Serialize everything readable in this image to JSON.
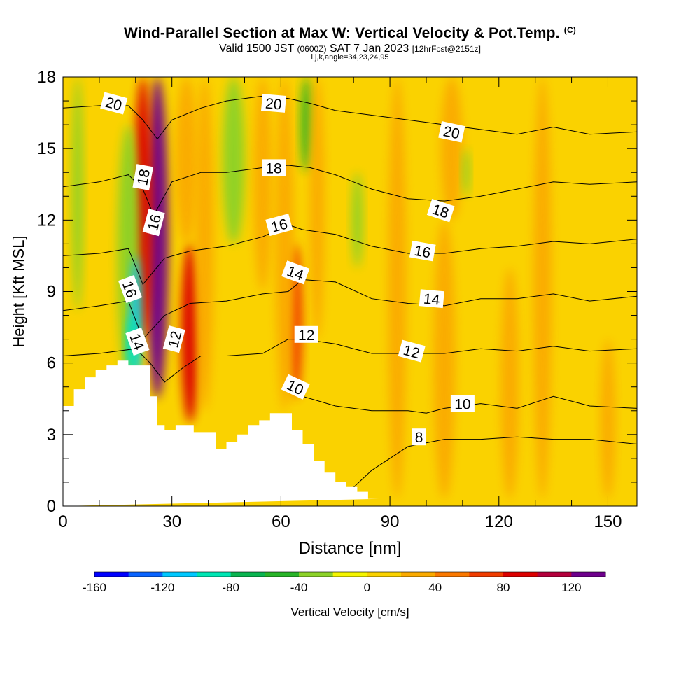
{
  "header": {
    "title": "Wind-Parallel Section at Max W: Vertical Velocity & Pot.Temp.",
    "copyright": "(C)",
    "valid_prefix": "Valid 1500 JST",
    "valid_utc": "(0600Z)",
    "valid_date": "SAT 7 Jan 2023",
    "forecast": "[12hrFcst@2151z]",
    "indices": "i,j,k,angle=34,23,24,95"
  },
  "chart_data": {
    "type": "contour",
    "xlabel": "Distance [nm]",
    "ylabel": "Height [Kft MSL]",
    "xlim": [
      0,
      158
    ],
    "ylim": [
      0,
      18
    ],
    "x_ticks": [
      0,
      30,
      60,
      90,
      120,
      150
    ],
    "y_ticks": [
      0,
      3,
      6,
      9,
      12,
      15,
      18
    ],
    "colorbar": {
      "label": "Vertical Velocity [cm/s]",
      "range": [
        -160,
        140
      ],
      "step": 20,
      "tick_labels": [
        -160,
        -120,
        -80,
        -40,
        0,
        40,
        80,
        120
      ],
      "colors": [
        "#0000ff",
        "#0a64ff",
        "#00c8ff",
        "#00e6b4",
        "#0ab450",
        "#28b428",
        "#8cd228",
        "#f5f500",
        "#fad200",
        "#faaa00",
        "#fa7800",
        "#f03c00",
        "#dc0000",
        "#b4003c",
        "#6e008c"
      ]
    },
    "terrain_profile": {
      "x": [
        0,
        3,
        3,
        6,
        6,
        9,
        9,
        12,
        12,
        15,
        15,
        18,
        18,
        24,
        24,
        26,
        26,
        28,
        28,
        31,
        31,
        36,
        36,
        42,
        42,
        45,
        45,
        48,
        48,
        51,
        51,
        54,
        54,
        57,
        57,
        63,
        63,
        66,
        66,
        69,
        69,
        72,
        72,
        75,
        75,
        78,
        78,
        81,
        81,
        84,
        84,
        87,
        87,
        158
      ],
      "y": [
        4.2,
        4.2,
        4.9,
        4.9,
        5.4,
        5.4,
        5.7,
        5.7,
        5.9,
        5.9,
        6.1,
        6.1,
        5.9,
        5.9,
        4.6,
        4.6,
        3.4,
        3.4,
        3.2,
        3.2,
        3.4,
        3.4,
        3.1,
        3.1,
        2.4,
        2.4,
        2.7,
        2.7,
        3.0,
        3.0,
        3.4,
        3.4,
        3.6,
        3.6,
        3.9,
        3.9,
        3.2,
        3.2,
        2.6,
        2.6,
        1.9,
        1.9,
        1.4,
        1.4,
        1.0,
        1.0,
        0.8,
        0.8,
        0.6,
        0.6,
        0.3,
        0.3,
        0.3
      ]
    },
    "velocity_features": [
      {
        "x": 26,
        "y_bottom": 4.5,
        "y_top": 18,
        "w": 6,
        "value": 130
      },
      {
        "x": 22,
        "y_bottom": 7,
        "y_top": 18,
        "w": 5,
        "value": 90
      },
      {
        "x": 35,
        "y_bottom": 3.5,
        "y_top": 11,
        "w": 5,
        "value": 95
      },
      {
        "x": 34,
        "y_bottom": 11,
        "y_top": 18,
        "w": 6,
        "value": 35
      },
      {
        "x": 39,
        "y_bottom": 4,
        "y_top": 18,
        "w": 5,
        "value": 25
      },
      {
        "x": 18,
        "y_bottom": 5.2,
        "y_top": 16,
        "w": 6,
        "value": -40
      },
      {
        "x": 20,
        "y_bottom": 5.2,
        "y_top": 10.5,
        "w": 3,
        "value": -110
      },
      {
        "x": 19,
        "y_bottom": 5.5,
        "y_top": 8,
        "w": 3,
        "value": -90
      },
      {
        "x": 4,
        "y_bottom": 8.2,
        "y_top": 18,
        "w": 3,
        "value": -40
      },
      {
        "x": 47,
        "y_bottom": 11,
        "y_top": 18,
        "w": 6,
        "value": -40
      },
      {
        "x": 55,
        "y_bottom": 9,
        "y_top": 18,
        "w": 5,
        "value": 35
      },
      {
        "x": 64,
        "y_bottom": 4.5,
        "y_top": 11,
        "w": 4,
        "value": 75
      },
      {
        "x": 61,
        "y_bottom": 4,
        "y_top": 18,
        "w": 5,
        "value": 35
      },
      {
        "x": 67,
        "y_bottom": 14,
        "y_top": 18,
        "w": 3,
        "value": -50
      },
      {
        "x": 70,
        "y_bottom": 7,
        "y_top": 18,
        "w": 4,
        "value": 20
      },
      {
        "x": 81,
        "y_bottom": 10,
        "y_top": 14,
        "w": 3,
        "value": -30
      },
      {
        "x": 92,
        "y_bottom": 0.3,
        "y_top": 18,
        "w": 5,
        "value": 25
      },
      {
        "x": 105,
        "y_bottom": 0.3,
        "y_top": 12,
        "w": 6,
        "value": 30
      },
      {
        "x": 107,
        "y_bottom": 12,
        "y_top": 18,
        "w": 6,
        "value": 20
      },
      {
        "x": 111,
        "y_bottom": 13,
        "y_top": 15,
        "w": 2,
        "value": -30
      },
      {
        "x": 123,
        "y_bottom": 0.3,
        "y_top": 10,
        "w": 5,
        "value": 20
      },
      {
        "x": 132,
        "y_bottom": 0.3,
        "y_top": 18,
        "w": 5,
        "value": 25
      },
      {
        "x": 150,
        "y_bottom": 0.3,
        "y_top": 7,
        "w": 4,
        "value": 25
      }
    ],
    "theta_isolines": [
      {
        "level": 8,
        "x": [
          78,
          85,
          95,
          105,
          115,
          125,
          135,
          145,
          158
        ],
        "y": [
          0.5,
          1.5,
          2.5,
          2.8,
          2.8,
          2.9,
          2.8,
          2.8,
          2.6
        ]
      },
      {
        "level": 10,
        "x": [
          63,
          66,
          75,
          85,
          95,
          100,
          105,
          115,
          125,
          135,
          145,
          158
        ],
        "y": [
          5.0,
          4.6,
          4.2,
          4.0,
          4.0,
          3.9,
          4.1,
          4.3,
          4.1,
          4.6,
          4.2,
          4.1
        ]
      },
      {
        "level": 12,
        "x": [
          0,
          10,
          20,
          24,
          28,
          33,
          38,
          45,
          55,
          62,
          66,
          75,
          85,
          95,
          105,
          115,
          125,
          135,
          145,
          158
        ],
        "y": [
          6.3,
          6.4,
          6.6,
          6.0,
          5.2,
          5.8,
          6.3,
          6.3,
          6.4,
          7.0,
          7.0,
          6.8,
          6.4,
          6.4,
          6.4,
          6.6,
          6.5,
          6.7,
          6.5,
          6.6
        ]
      },
      {
        "level": 14,
        "x": [
          0,
          10,
          18,
          22,
          28,
          35,
          45,
          55,
          62,
          66,
          75,
          85,
          95,
          105,
          115,
          125,
          135,
          145,
          158
        ],
        "y": [
          8.2,
          8.4,
          8.6,
          7.0,
          8.0,
          8.5,
          8.6,
          8.9,
          9.0,
          9.5,
          9.4,
          8.7,
          8.5,
          8.4,
          8.7,
          8.7,
          8.9,
          8.6,
          8.8
        ]
      },
      {
        "level": 16,
        "x": [
          0,
          10,
          18,
          22,
          28,
          35,
          45,
          55,
          62,
          66,
          75,
          85,
          95,
          105,
          115,
          125,
          135,
          145,
          158
        ],
        "y": [
          10.5,
          10.6,
          10.8,
          9.3,
          10.4,
          10.7,
          10.9,
          11.3,
          11.8,
          11.6,
          11.4,
          10.9,
          10.6,
          10.6,
          10.8,
          10.9,
          11.1,
          11.0,
          11.2
        ]
      },
      {
        "level": 18,
        "x": [
          0,
          10,
          18,
          22,
          25,
          30,
          38,
          45,
          55,
          62,
          68,
          75,
          85,
          95,
          105,
          115,
          125,
          135,
          145,
          158
        ],
        "y": [
          13.4,
          13.6,
          13.9,
          13.3,
          12.2,
          13.6,
          14.0,
          14.0,
          14.2,
          14.3,
          14.2,
          13.9,
          13.3,
          12.9,
          12.8,
          13.0,
          13.3,
          13.6,
          13.5,
          13.6
        ]
      },
      {
        "level": 20,
        "x": [
          0,
          10,
          18,
          22,
          26,
          30,
          38,
          45,
          55,
          62,
          68,
          75,
          85,
          95,
          105,
          115,
          125,
          135,
          145,
          158
        ],
        "y": [
          16.7,
          16.8,
          16.8,
          16.2,
          15.4,
          16.2,
          16.7,
          17.0,
          17.2,
          17.1,
          16.9,
          16.6,
          16.4,
          16.2,
          16.0,
          15.8,
          15.6,
          15.9,
          15.6,
          15.7
        ]
      }
    ],
    "theta_labels": [
      {
        "text": "20",
        "x": 14.0,
        "y": 16.9,
        "angle": 15
      },
      {
        "text": "20",
        "x": 58.0,
        "y": 16.9,
        "angle": 5
      },
      {
        "text": "20",
        "x": 107.0,
        "y": 15.7,
        "angle": 12
      },
      {
        "text": "18",
        "x": 22.0,
        "y": 13.8,
        "angle": -80
      },
      {
        "text": "18",
        "x": 58.0,
        "y": 14.2,
        "angle": 0
      },
      {
        "text": "18",
        "x": 104.0,
        "y": 12.4,
        "angle": 18
      },
      {
        "text": "16",
        "x": 25.0,
        "y": 11.9,
        "angle": -75
      },
      {
        "text": "16",
        "x": 59.5,
        "y": 11.8,
        "angle": -15
      },
      {
        "text": "16",
        "x": 99.0,
        "y": 10.7,
        "angle": 10
      },
      {
        "text": "16",
        "x": 18.5,
        "y": 9.1,
        "angle": 70
      },
      {
        "text": "14",
        "x": 64.0,
        "y": 9.8,
        "angle": 20
      },
      {
        "text": "14",
        "x": 101.5,
        "y": 8.7,
        "angle": 5
      },
      {
        "text": "14",
        "x": 20.5,
        "y": 6.9,
        "angle": 70
      },
      {
        "text": "12",
        "x": 30.6,
        "y": 7.0,
        "angle": -75
      },
      {
        "text": "12",
        "x": 67.0,
        "y": 7.2,
        "angle": 0
      },
      {
        "text": "12",
        "x": 96.0,
        "y": 6.5,
        "angle": 15
      },
      {
        "text": "10",
        "x": 64.0,
        "y": 5.0,
        "angle": 25
      },
      {
        "text": "10",
        "x": 110.0,
        "y": 4.3,
        "angle": 0
      },
      {
        "text": "8",
        "x": 98.0,
        "y": 2.9,
        "angle": 0
      }
    ]
  }
}
